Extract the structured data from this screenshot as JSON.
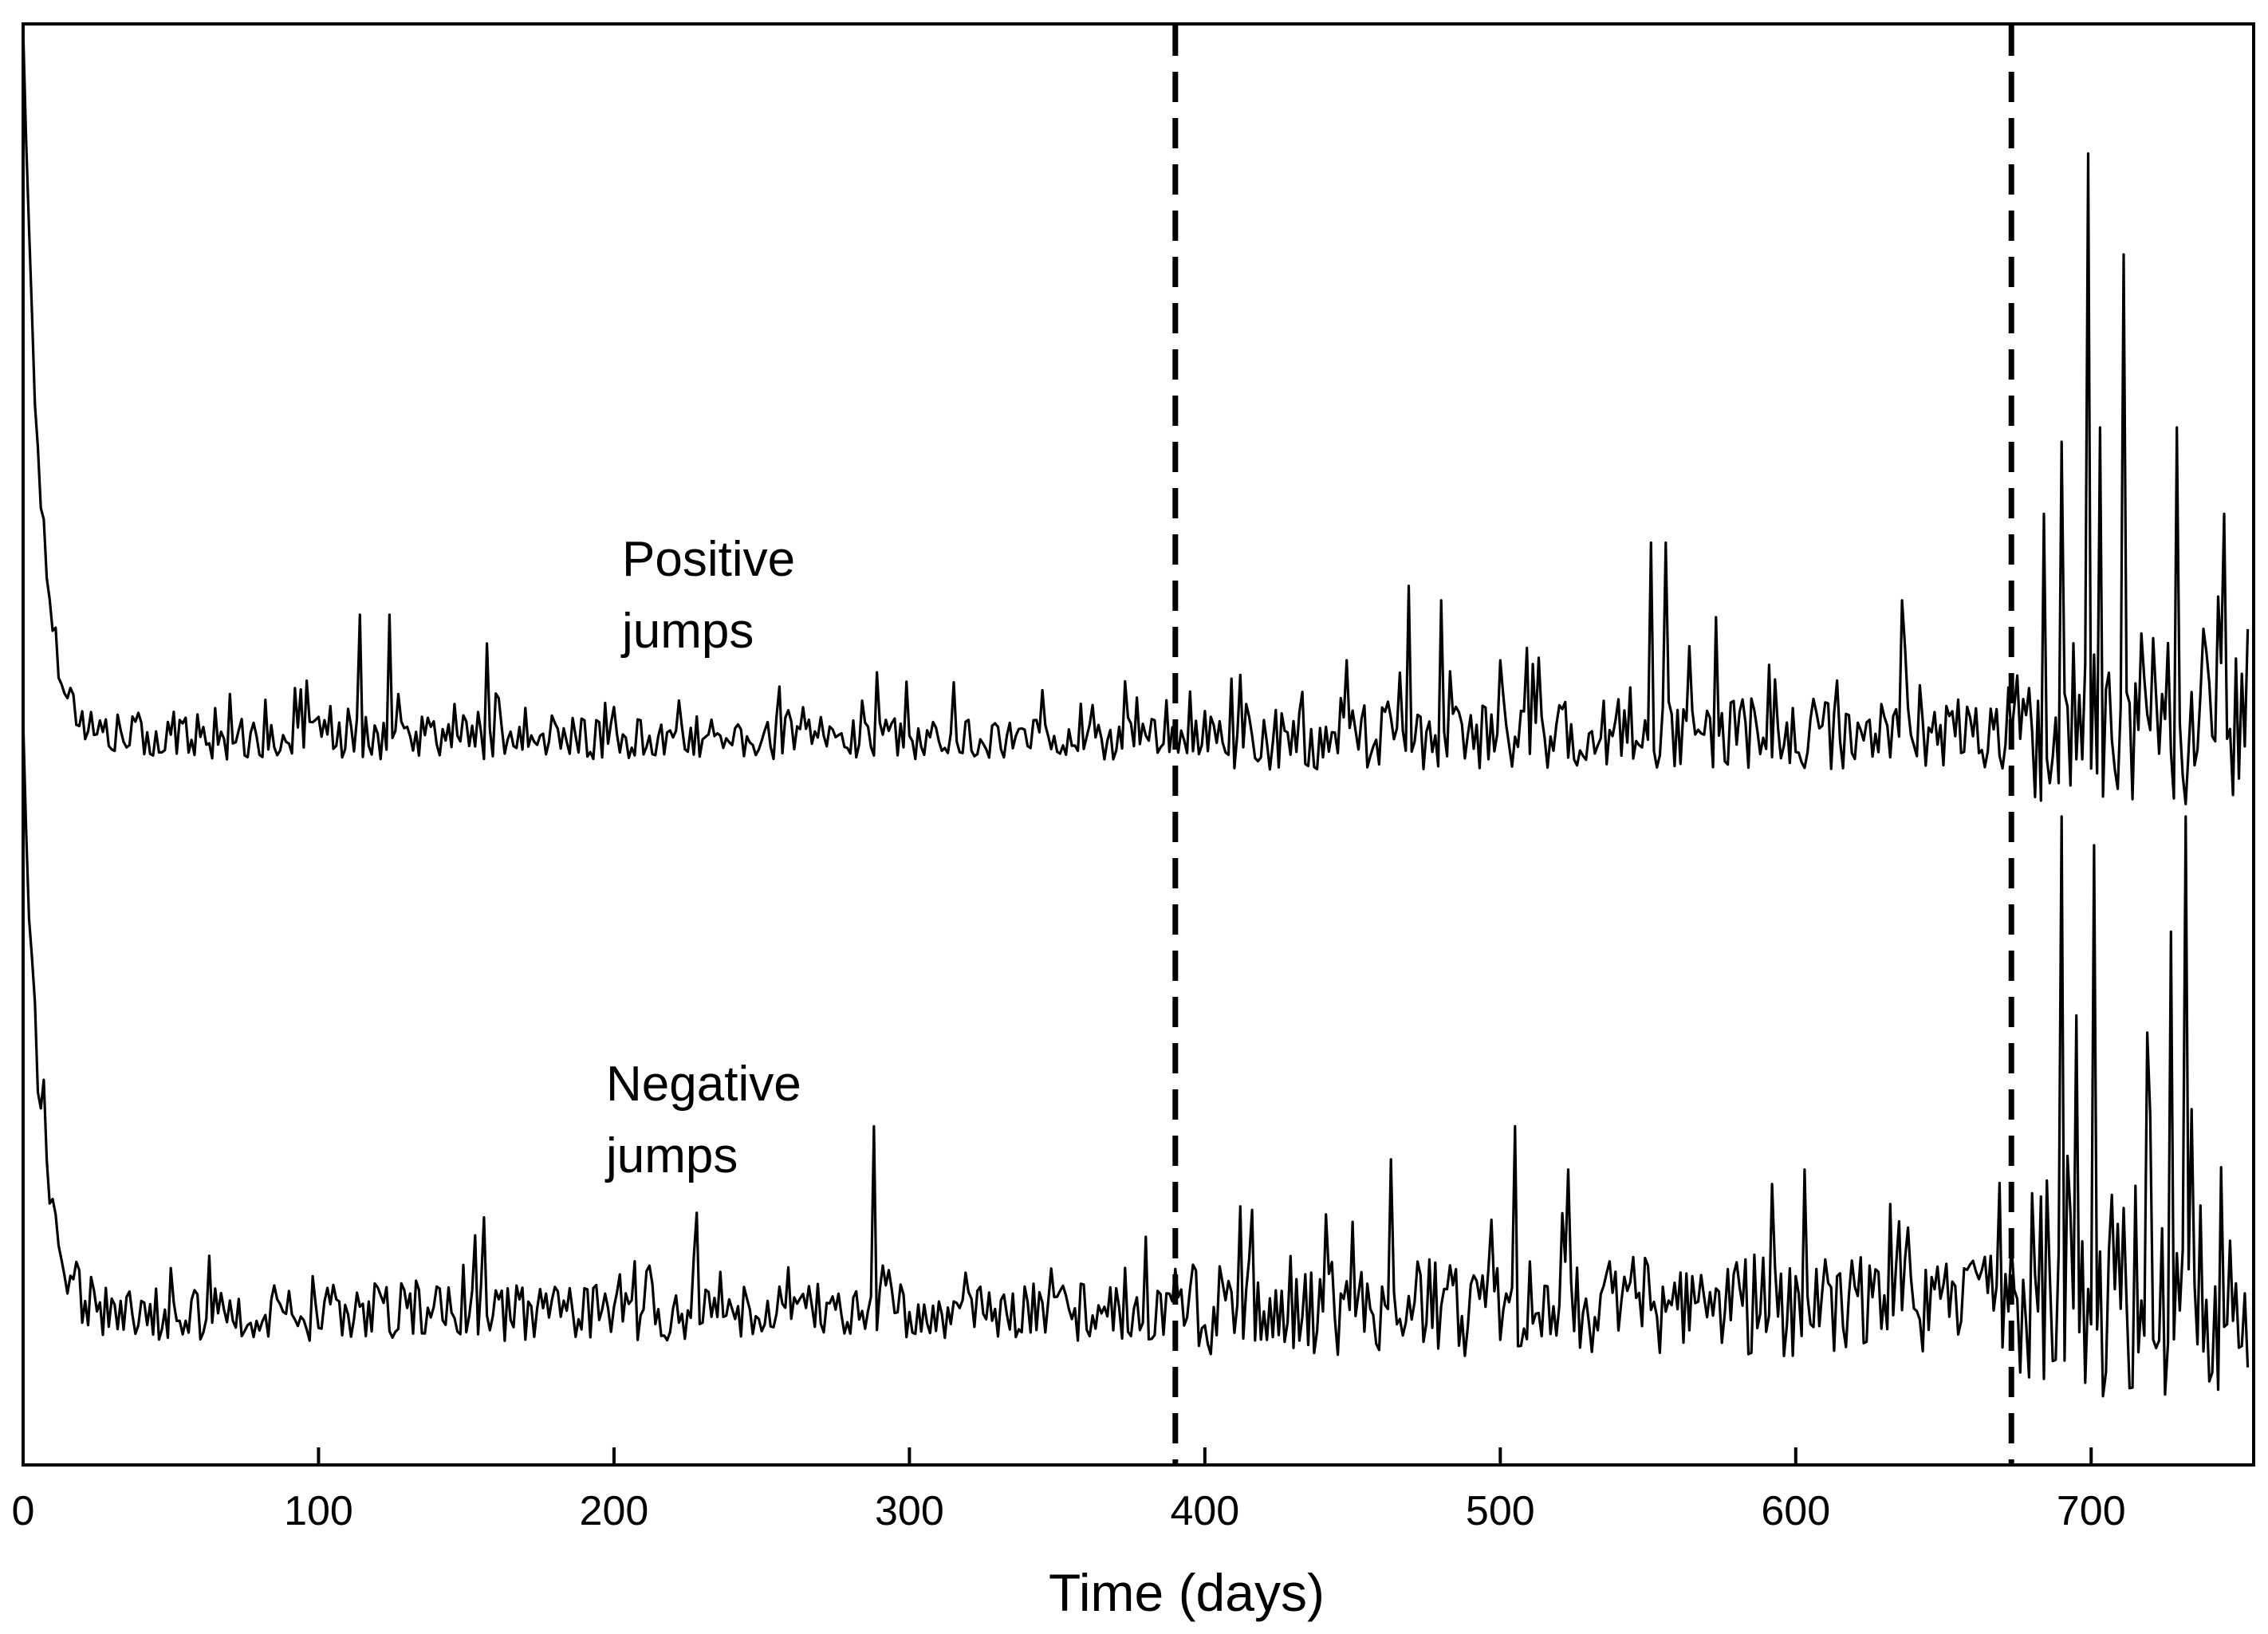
{
  "chart_data": {
    "type": "line",
    "title": "",
    "xlabel": "Time (days)",
    "ylabel": "",
    "xlim": [
      0,
      755
    ],
    "xticks": [
      0,
      100,
      200,
      300,
      400,
      500,
      600,
      700
    ],
    "xtick_labels": [
      "0",
      "100",
      "200",
      "300",
      "400",
      "500",
      "600",
      "700"
    ],
    "ylim": [
      0,
      1
    ],
    "grid": false,
    "vertical_lines": [
      {
        "x": 390,
        "style": "dashed"
      },
      {
        "x": 673,
        "style": "dashed"
      }
    ],
    "annotations": [
      {
        "id": "pos",
        "lines": [
          "Positive",
          "jumps"
        ],
        "x": 203,
        "y": 0.63
      },
      {
        "id": "neg",
        "lines": [
          "Negative",
          "jumps"
        ],
        "x": 197,
        "y": 0.265
      }
    ],
    "series": [
      {
        "name": "Positive jumps",
        "baseline": 0.5,
        "start": 1.0,
        "seed": 17,
        "segments": [
          {
            "from": 0,
            "to": 390,
            "noise": 0.015
          },
          {
            "from": 390,
            "to": 673,
            "noise": 0.025
          },
          {
            "from": 673,
            "to": 753,
            "noise": 0.06
          }
        ],
        "peaks": [
          {
            "x": 114,
            "y": 0.59
          },
          {
            "x": 124,
            "y": 0.59
          },
          {
            "x": 157,
            "y": 0.57
          },
          {
            "x": 289,
            "y": 0.55
          },
          {
            "x": 469,
            "y": 0.61
          },
          {
            "x": 480,
            "y": 0.6
          },
          {
            "x": 551,
            "y": 0.64
          },
          {
            "x": 556,
            "y": 0.64
          },
          {
            "x": 636,
            "y": 0.6
          },
          {
            "x": 684,
            "y": 0.66
          },
          {
            "x": 690,
            "y": 0.71
          },
          {
            "x": 699,
            "y": 0.91
          },
          {
            "x": 703,
            "y": 0.72
          },
          {
            "x": 711,
            "y": 0.84
          },
          {
            "x": 729,
            "y": 0.72
          },
          {
            "x": 745,
            "y": 0.66
          },
          {
            "x": 753,
            "y": 0.58
          }
        ]
      },
      {
        "name": "Negative jumps",
        "baseline": 0.1,
        "start": 0.52,
        "seed": 91,
        "segments": [
          {
            "from": 0,
            "to": 390,
            "noise": 0.02
          },
          {
            "from": 390,
            "to": 673,
            "noise": 0.035
          },
          {
            "from": 673,
            "to": 753,
            "noise": 0.075
          }
        ],
        "peaks": [
          {
            "x": 228,
            "y": 0.175
          },
          {
            "x": 288,
            "y": 0.235
          },
          {
            "x": 505,
            "y": 0.235
          },
          {
            "x": 523,
            "y": 0.205
          },
          {
            "x": 603,
            "y": 0.205
          },
          {
            "x": 690,
            "y": 0.45
          },
          {
            "x": 701,
            "y": 0.43
          },
          {
            "x": 719,
            "y": 0.3
          },
          {
            "x": 727,
            "y": 0.37
          },
          {
            "x": 732,
            "y": 0.45
          },
          {
            "x": 737,
            "y": 0.18
          },
          {
            "x": 748,
            "y": 0.1
          }
        ]
      }
    ]
  }
}
